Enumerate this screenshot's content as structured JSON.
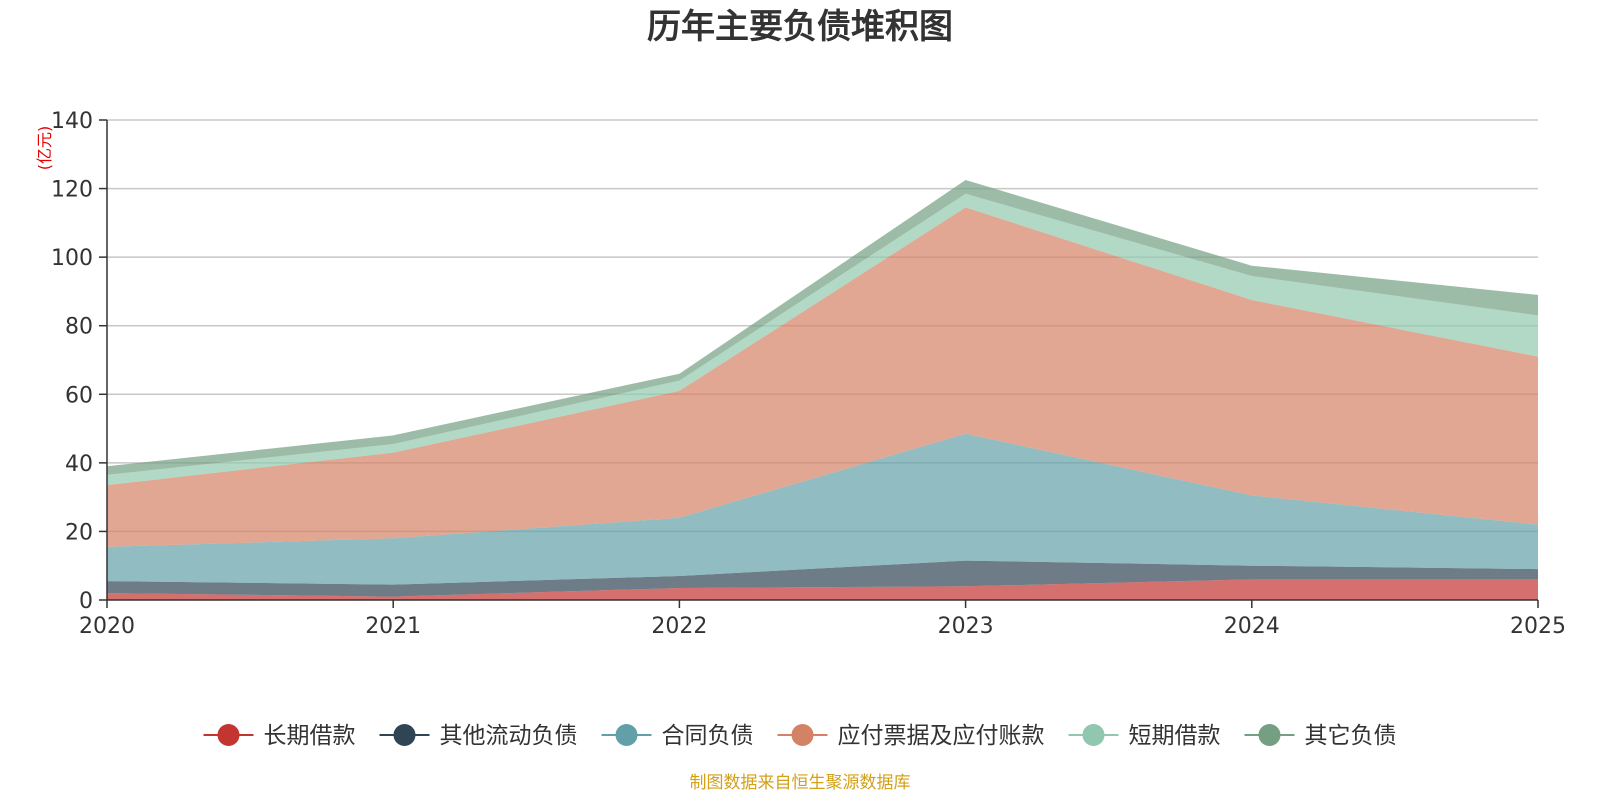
{
  "chart_data": {
    "type": "area",
    "stacked": true,
    "title": "历年主要负债堆积图",
    "unit_label": "(亿元)",
    "source": "制图数据来自恒生聚源数据库",
    "x": [
      "2020",
      "2021",
      "2022",
      "2023",
      "2024",
      "2025"
    ],
    "ylim": [
      0,
      140
    ],
    "yticks": [
      0,
      20,
      40,
      60,
      80,
      100,
      120,
      140
    ],
    "grid": true,
    "legend_position": "bottom",
    "series": [
      {
        "name": "长期借款",
        "values": [
          2.0,
          1.0,
          3.5,
          4.0,
          6.0,
          6.0
        ],
        "color": "#c23531"
      },
      {
        "name": "其他流动负债",
        "values": [
          3.5,
          3.5,
          3.5,
          7.5,
          4.0,
          3.0
        ],
        "color": "#2f4554"
      },
      {
        "name": "合同负债",
        "values": [
          10.0,
          13.5,
          17.0,
          37.0,
          20.5,
          13.0
        ],
        "color": "#61a0a8"
      },
      {
        "name": "应付票据及应付账款",
        "values": [
          18.0,
          25.0,
          37.0,
          66.0,
          57.0,
          49.0
        ],
        "color": "#d48265"
      },
      {
        "name": "短期借款",
        "values": [
          3.0,
          2.5,
          3.0,
          4.0,
          7.0,
          12.0
        ],
        "color": "#91c7ae"
      },
      {
        "name": "其它负债",
        "values": [
          2.5,
          2.5,
          2.0,
          4.0,
          3.0,
          6.0
        ],
        "color": "#749f83"
      }
    ]
  }
}
